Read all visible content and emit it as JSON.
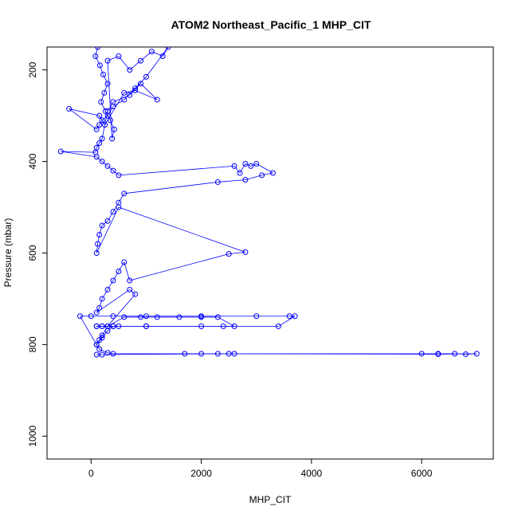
{
  "chart_data": {
    "type": "scatter",
    "title": "ATOM2 Northeast_Pacific_1 MHP_CIT",
    "xlabel": "MHP_CIT",
    "ylabel": "Pressure (mbar)",
    "xlim": [
      -800,
      7300
    ],
    "ylim": [
      1050,
      150
    ],
    "y_reversed": true,
    "x_ticks": [
      0,
      2000,
      4000,
      6000
    ],
    "y_ticks": [
      200,
      400,
      600,
      800,
      1000
    ],
    "grid": false,
    "style": "points-and-lines",
    "marker": "open-circle",
    "color": "#0000ff",
    "series": [
      {
        "x": [
          120,
          80,
          160,
          220,
          300,
          240,
          180,
          260,
          350,
          420,
          380,
          300,
          500,
          700,
          900,
          1100,
          1300,
          1400,
          1000,
          800,
          600,
          400,
          300,
          200,
          150,
          100,
          -400,
          150,
          250,
          600,
          800,
          1200,
          900,
          700,
          400,
          300,
          200,
          150,
          100,
          80,
          -550,
          100,
          200,
          300,
          400,
          500,
          2600,
          2700,
          2800,
          2900,
          3000,
          3300,
          3100,
          2800,
          2300,
          600,
          500,
          400,
          300,
          200,
          150,
          120,
          100,
          500,
          2800,
          2500,
          700,
          600,
          500,
          400,
          300,
          200,
          150,
          100,
          700,
          800,
          300,
          200,
          150,
          100,
          -200,
          0,
          400,
          1000,
          2000,
          3000,
          3600,
          3700,
          3400,
          2000,
          1000,
          500,
          200,
          100,
          300,
          600,
          900,
          1200,
          1600,
          2000,
          2300,
          2600,
          2400,
          1000,
          400,
          200,
          100,
          400,
          300,
          200,
          100,
          150,
          300,
          400,
          1700,
          2000,
          2300,
          2500,
          6000,
          6300,
          6600,
          6800,
          7000,
          6300,
          2600,
          200,
          100
        ],
        "y": [
          150,
          170,
          190,
          210,
          230,
          250,
          270,
          290,
          310,
          330,
          350,
          180,
          170,
          200,
          180,
          160,
          170,
          150,
          215,
          240,
          265,
          280,
          300,
          310,
          320,
          330,
          285,
          300,
          320,
          250,
          245,
          265,
          230,
          255,
          270,
          290,
          350,
          360,
          370,
          380,
          378,
          390,
          400,
          410,
          420,
          430,
          410,
          425,
          405,
          410,
          405,
          425,
          430,
          440,
          445,
          470,
          490,
          510,
          530,
          540,
          560,
          580,
          600,
          500,
          598,
          602,
          660,
          620,
          640,
          660,
          680,
          700,
          720,
          730,
          680,
          690,
          760,
          780,
          790,
          800,
          738,
          738,
          738,
          738,
          738,
          738,
          738,
          738,
          760,
          760,
          760,
          760,
          760,
          760,
          760,
          740,
          740,
          740,
          740,
          740,
          740,
          760,
          760,
          760,
          760,
          760,
          760,
          760,
          770,
          785,
          800,
          810,
          818,
          820,
          820,
          820,
          820,
          820,
          820,
          820,
          820,
          821,
          820,
          821,
          820,
          822,
          822
        ]
      }
    ]
  }
}
